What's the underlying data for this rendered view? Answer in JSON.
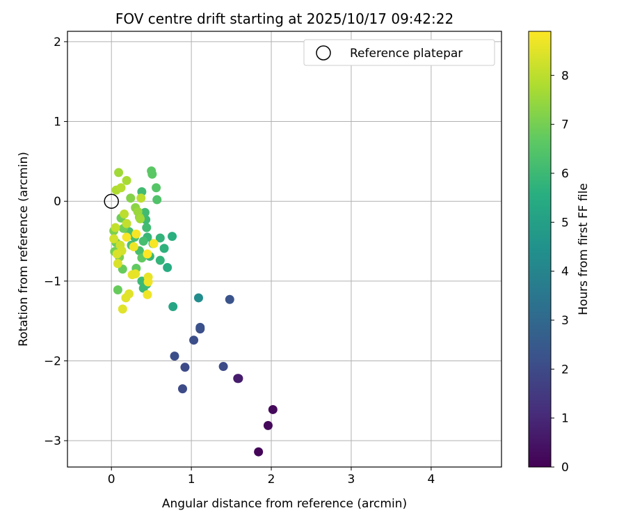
{
  "chart_data": {
    "type": "scatter",
    "title": "FOV centre drift starting at 2025/10/17 09:42:22",
    "xlabel": "Angular distance from reference (arcmin)",
    "ylabel": "Rotation from reference (arcmin)",
    "xlim": [
      -0.55,
      4.88
    ],
    "ylim": [
      -3.33,
      2.13
    ],
    "xticks": [
      0,
      1,
      2,
      3,
      4
    ],
    "yticks": [
      -3,
      -2,
      -1,
      0,
      1,
      2
    ],
    "xtick_labels": [
      "0",
      "1",
      "2",
      "3",
      "4"
    ],
    "ytick_labels": [
      "−3",
      "−2",
      "−1",
      "0",
      "1",
      "2"
    ],
    "grid": true,
    "legend": {
      "location": "top-right",
      "entries": [
        {
          "label": "Reference platepar",
          "marker": "open-circle",
          "color": "#000000"
        }
      ]
    },
    "reference_point": {
      "x": 0.0,
      "y": 0.0
    },
    "colorbar": {
      "label": "Hours from first FF file",
      "colormap": "viridis",
      "range": [
        0,
        8.9
      ],
      "ticks": [
        0,
        1,
        2,
        3,
        4,
        5,
        6,
        7,
        8
      ],
      "tick_labels": [
        "0",
        "1",
        "2",
        "3",
        "4",
        "5",
        "6",
        "7",
        "8"
      ]
    },
    "points": [
      {
        "x": 1.84,
        "y": -3.14,
        "h": 0.1
      },
      {
        "x": 1.96,
        "y": -2.81,
        "h": 0.2
      },
      {
        "x": 2.02,
        "y": -2.61,
        "h": 0.2
      },
      {
        "x": 1.58,
        "y": -2.22,
        "h": 0.6
      },
      {
        "x": 1.59,
        "y": -2.22,
        "h": 0.7
      },
      {
        "x": 0.89,
        "y": -2.35,
        "h": 2.0
      },
      {
        "x": 0.92,
        "y": -2.08,
        "h": 2.0
      },
      {
        "x": 1.4,
        "y": -2.07,
        "h": 2.0
      },
      {
        "x": 0.79,
        "y": -1.94,
        "h": 2.1
      },
      {
        "x": 1.03,
        "y": -1.74,
        "h": 2.1
      },
      {
        "x": 1.11,
        "y": -1.6,
        "h": 2.1
      },
      {
        "x": 1.11,
        "y": -1.58,
        "h": 2.2
      },
      {
        "x": 1.48,
        "y": -1.23,
        "h": 2.3
      },
      {
        "x": 1.09,
        "y": -1.21,
        "h": 4.3
      },
      {
        "x": 0.77,
        "y": -1.32,
        "h": 5.2
      },
      {
        "x": 0.7,
        "y": -0.83,
        "h": 5.5
      },
      {
        "x": 0.76,
        "y": -0.44,
        "h": 5.6
      },
      {
        "x": 0.66,
        "y": -0.59,
        "h": 5.7
      },
      {
        "x": 0.61,
        "y": -0.74,
        "h": 5.8
      },
      {
        "x": 0.61,
        "y": -0.46,
        "h": 5.8
      },
      {
        "x": 0.52,
        "y": -0.53,
        "h": 5.9
      },
      {
        "x": 0.48,
        "y": -0.69,
        "h": 5.9
      },
      {
        "x": 0.45,
        "y": -0.45,
        "h": 5.9
      },
      {
        "x": 0.44,
        "y": -1.04,
        "h": 6.0
      },
      {
        "x": 0.4,
        "y": -1.09,
        "h": 6.0
      },
      {
        "x": 0.38,
        "y": -1.0,
        "h": 6.0
      },
      {
        "x": 0.43,
        "y": -0.23,
        "h": 6.0
      },
      {
        "x": 0.42,
        "y": -0.14,
        "h": 6.1
      },
      {
        "x": 0.38,
        "y": 0.12,
        "h": 6.1
      },
      {
        "x": 0.44,
        "y": -0.33,
        "h": 6.1
      },
      {
        "x": 0.4,
        "y": -0.5,
        "h": 6.2
      },
      {
        "x": 0.35,
        "y": -0.62,
        "h": 6.2
      },
      {
        "x": 0.29,
        "y": -0.45,
        "h": 6.2
      },
      {
        "x": 0.25,
        "y": -0.55,
        "h": 6.3
      },
      {
        "x": 0.22,
        "y": -0.38,
        "h": 6.3
      },
      {
        "x": 0.19,
        "y": -0.28,
        "h": 6.3
      },
      {
        "x": 0.57,
        "y": 0.02,
        "h": 6.4
      },
      {
        "x": 0.56,
        "y": 0.17,
        "h": 6.5
      },
      {
        "x": 0.5,
        "y": 0.38,
        "h": 6.6
      },
      {
        "x": 0.51,
        "y": 0.34,
        "h": 6.6
      },
      {
        "x": 0.38,
        "y": -0.71,
        "h": 6.7
      },
      {
        "x": 0.31,
        "y": -0.84,
        "h": 6.7
      },
      {
        "x": 0.14,
        "y": -0.85,
        "h": 6.8
      },
      {
        "x": 0.08,
        "y": -1.11,
        "h": 6.8
      },
      {
        "x": 0.15,
        "y": -0.34,
        "h": 6.9
      },
      {
        "x": 0.12,
        "y": -0.21,
        "h": 6.9
      },
      {
        "x": 0.06,
        "y": -0.52,
        "h": 6.9
      },
      {
        "x": 0.04,
        "y": -0.63,
        "h": 7.0
      },
      {
        "x": 0.03,
        "y": -0.37,
        "h": 7.1
      },
      {
        "x": 0.1,
        "y": -0.7,
        "h": 7.1
      },
      {
        "x": 0.24,
        "y": 0.04,
        "h": 7.2
      },
      {
        "x": 0.3,
        "y": -0.08,
        "h": 7.3
      },
      {
        "x": 0.35,
        "y": -0.2,
        "h": 7.4
      },
      {
        "x": 0.33,
        "y": -0.13,
        "h": 7.5
      },
      {
        "x": 0.36,
        "y": -0.22,
        "h": 7.6
      },
      {
        "x": 0.09,
        "y": 0.36,
        "h": 7.6
      },
      {
        "x": 0.19,
        "y": 0.26,
        "h": 7.7
      },
      {
        "x": 0.06,
        "y": 0.14,
        "h": 7.8
      },
      {
        "x": 0.12,
        "y": 0.17,
        "h": 7.9
      },
      {
        "x": 0.37,
        "y": 0.04,
        "h": 8.0
      },
      {
        "x": 0.16,
        "y": -0.16,
        "h": 8.0
      },
      {
        "x": 0.19,
        "y": -0.28,
        "h": 8.1
      },
      {
        "x": 0.05,
        "y": -0.33,
        "h": 8.1
      },
      {
        "x": 0.11,
        "y": -0.55,
        "h": 8.2
      },
      {
        "x": 0.03,
        "y": -0.47,
        "h": 8.3
      },
      {
        "x": 0.13,
        "y": -0.62,
        "h": 8.3
      },
      {
        "x": 0.07,
        "y": -0.66,
        "h": 8.4
      },
      {
        "x": 0.08,
        "y": -0.78,
        "h": 8.4
      },
      {
        "x": 0.14,
        "y": -1.35,
        "h": 8.5
      },
      {
        "x": 0.18,
        "y": -1.21,
        "h": 8.5
      },
      {
        "x": 0.22,
        "y": -1.16,
        "h": 8.5
      },
      {
        "x": 0.3,
        "y": -0.91,
        "h": 8.6
      },
      {
        "x": 0.26,
        "y": -0.92,
        "h": 8.6
      },
      {
        "x": 0.46,
        "y": -0.95,
        "h": 8.6
      },
      {
        "x": 0.46,
        "y": -1.01,
        "h": 8.7
      },
      {
        "x": 0.45,
        "y": -1.17,
        "h": 8.7
      },
      {
        "x": 0.28,
        "y": -0.57,
        "h": 8.7
      },
      {
        "x": 0.31,
        "y": -0.41,
        "h": 8.8
      },
      {
        "x": 0.19,
        "y": -0.45,
        "h": 8.8
      },
      {
        "x": 0.53,
        "y": -0.53,
        "h": 8.8
      },
      {
        "x": 0.45,
        "y": -0.66,
        "h": 8.9
      }
    ]
  }
}
